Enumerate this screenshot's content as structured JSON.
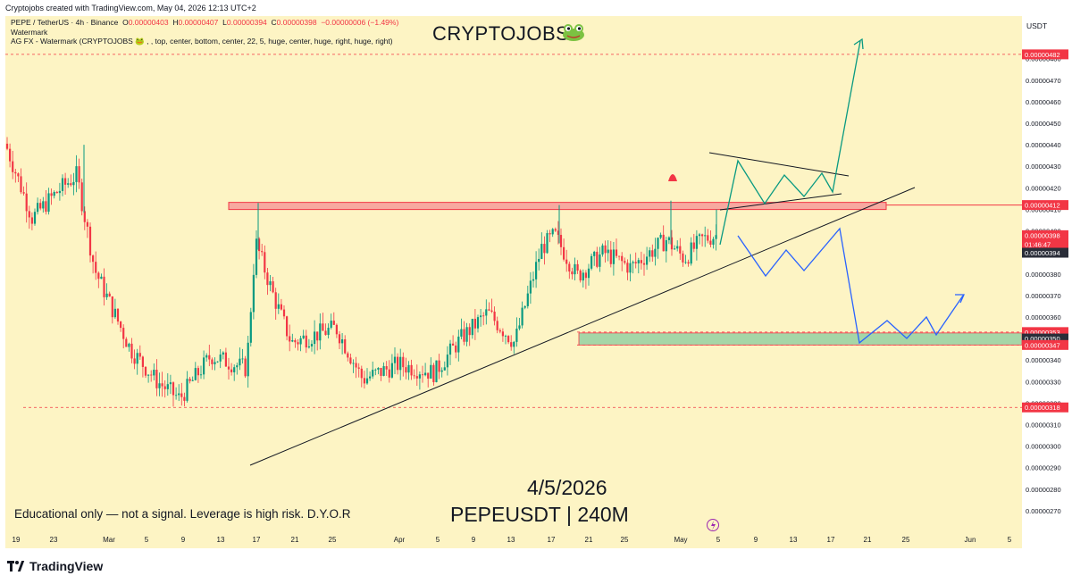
{
  "header": {
    "credit": "Cryptojobs created with TradingView.com, May 04, 2026 12:13 UTC+2"
  },
  "legend": {
    "symbol": "PEPE / TetherUS · 4h · Binance",
    "open_label": "O",
    "open": "0.00000403",
    "high_label": "H",
    "high": "0.00000407",
    "low_label": "L",
    "low": "0.00000394",
    "close_label": "C",
    "close": "0.00000398",
    "change": "−0.00000006 (−1.49%)",
    "indicator_name": "Watermark",
    "indicator_params": "AG FX - Watermark (CRYPTOJOBS 🐸 , , top, center, bottom, center, 22, 5, huge, center, huge, right, huge, right)"
  },
  "watermark": {
    "text": "CRYPTOJOBS",
    "icon": "frog-icon"
  },
  "annotations": {
    "date": "4/5/2026",
    "symbol": "PEPEUSDT | 240M",
    "disclaimer": "Educational only — not a signal. Leverage is high risk. D.Y.O.R"
  },
  "price_axis": {
    "currency": "USDT"
  },
  "brand": {
    "name": "TradingView"
  },
  "colors": {
    "background": "#fdf4c4",
    "up": "#089981",
    "down": "#f23645",
    "resistance": "#f23645",
    "support_zone": "#a5d6a7",
    "bull_path": "#089981",
    "bear_path": "#2962ff",
    "trendline": "#131722"
  },
  "chart_data": {
    "type": "candlestick",
    "title": "",
    "timeframe": "4h",
    "x_ticks": [
      "19",
      "23",
      "Mar",
      "5",
      "9",
      "13",
      "17",
      "21",
      "25",
      "Apr",
      "5",
      "9",
      "13",
      "17",
      "21",
      "25",
      "May",
      "5",
      "9",
      "13",
      "17",
      "21",
      "25",
      "Jun",
      "5"
    ],
    "y_ticks": [
      "0.00000480",
      "0.00000470",
      "0.00000460",
      "0.00000450",
      "0.00000440",
      "0.00000430",
      "0.00000420",
      "0.00000410",
      "0.00000400",
      "0.00000390",
      "0.00000380",
      "0.00000370",
      "0.00000360",
      "0.00000350",
      "0.00000340",
      "0.00000330",
      "0.00000320",
      "0.00000310",
      "0.00000300",
      "0.00000290",
      "0.00000280",
      "0.00000270"
    ],
    "ylim": [
      2.65e-06,
      4.89e-06
    ],
    "price_labels": [
      {
        "value": "0.00000482",
        "color": "#f23645"
      },
      {
        "value": "0.00000412",
        "color": "#f23645"
      },
      {
        "value": "0.00000398",
        "color": "#f23645"
      },
      {
        "value": "01:46:47",
        "color": "#f23645"
      },
      {
        "value": "0.00000394",
        "color": "#2a2e39"
      },
      {
        "value": "0.00000353",
        "color": "#f23645"
      },
      {
        "value": "0.00000350",
        "color": "#2a2e39"
      },
      {
        "value": "0.00000347",
        "color": "#f23645"
      },
      {
        "value": "0.00000318",
        "color": "#f23645"
      }
    ],
    "levels": {
      "target": 4.82e-06,
      "resistance": 4.12e-06,
      "support_top": 3.53e-06,
      "support_bottom": 3.47e-06,
      "low": 3.18e-06
    },
    "last": {
      "open": 4.03e-06,
      "high": 4.07e-06,
      "low": 3.94e-06,
      "close": 3.98e-06
    }
  }
}
